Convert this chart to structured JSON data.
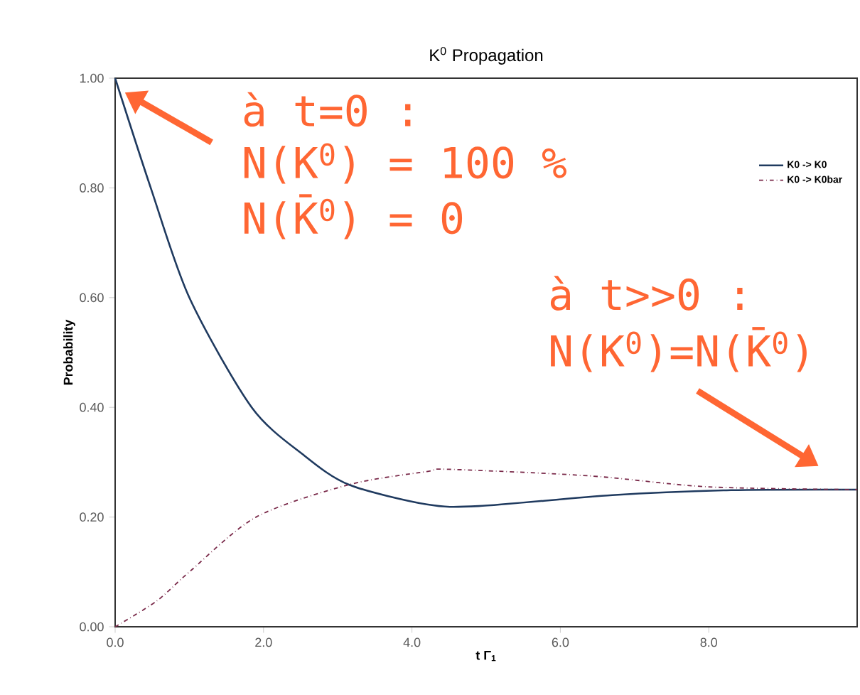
{
  "chart_data": {
    "type": "line",
    "title": "K$^{0}$ Propagation",
    "xlabel": "t Γ$_{1}$",
    "ylabel": "Probability",
    "xlim": [
      0,
      10
    ],
    "ylim": [
      0,
      1
    ],
    "xticks": [
      {
        "value": 0,
        "label": "0.0"
      },
      {
        "value": 2,
        "label": "2.0"
      },
      {
        "value": 4,
        "label": "4.0"
      },
      {
        "value": 6,
        "label": "6.0"
      },
      {
        "value": 8,
        "label": "8.0"
      }
    ],
    "yticks": [
      {
        "value": 0,
        "label": "0.00"
      },
      {
        "value": 0.2,
        "label": "0.20"
      },
      {
        "value": 0.4,
        "label": "0.40"
      },
      {
        "value": 0.6,
        "label": "0.60"
      },
      {
        "value": 0.8,
        "label": "0.80"
      },
      {
        "value": 1,
        "label": "1.00"
      }
    ],
    "legend": "top right",
    "grid": false,
    "series": [
      {
        "name": "K0 -> K0",
        "color": "#1f3a5f",
        "line_style": "solid",
        "x": [
          0,
          0.48,
          1.0,
          1.84,
          2.54,
          3.15,
          4.2,
          4.9,
          6.7,
          8.3,
          10
        ],
        "values": [
          1.0,
          0.8,
          0.6,
          0.4,
          0.313,
          0.259,
          0.223,
          0.22,
          0.24,
          0.249,
          0.25
        ]
      },
      {
        "name": "K0 -> K0bar",
        "color": "#7a2a4a",
        "line_style": "dashed",
        "x": [
          0,
          0.56,
          1.0,
          1.9,
          3.15,
          4.2,
          4.5,
          6.4,
          8.0,
          10
        ],
        "values": [
          0,
          0.047,
          0.1,
          0.2,
          0.259,
          0.283,
          0.287,
          0.275,
          0.255,
          0.25
        ]
      }
    ],
    "annotations": [
      "à t=0 :",
      "N(K$^{0}$) = 100 %",
      "N(K̄$^{0}$) = 0",
      "à t>>0 :",
      "N(K$^{0}$)=N(K̄$^{0}$)"
    ]
  }
}
